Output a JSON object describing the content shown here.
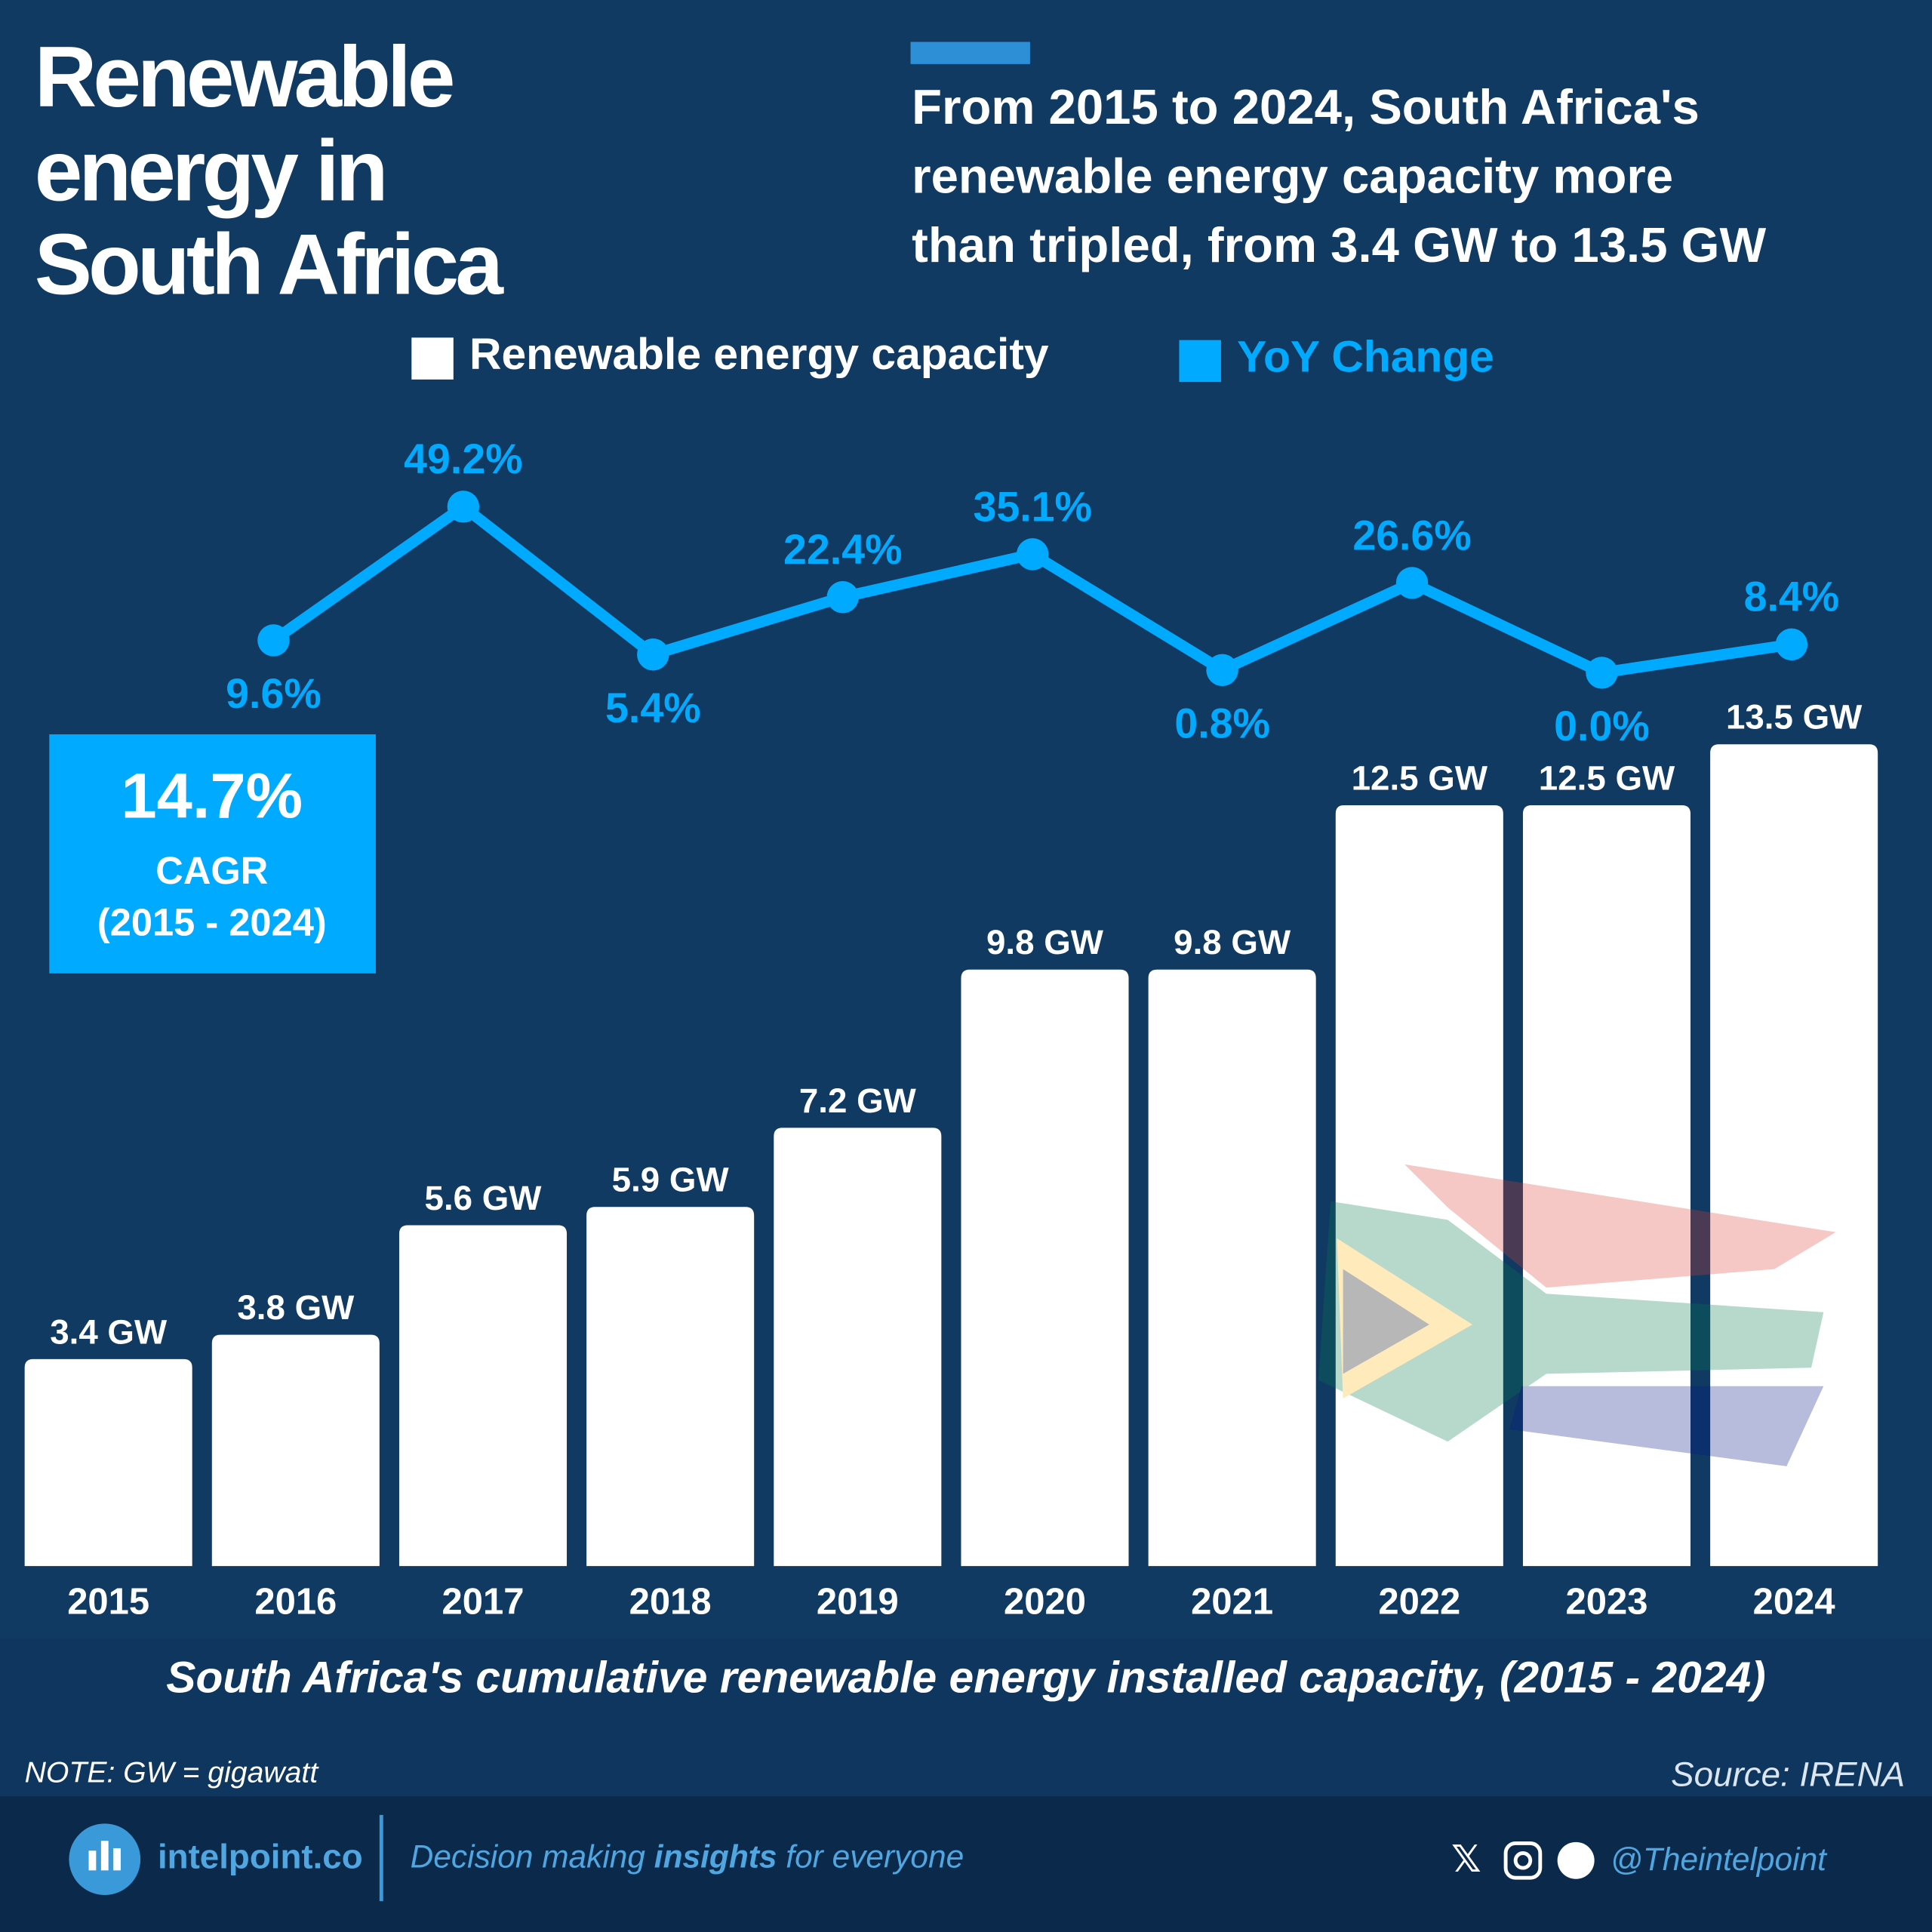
{
  "chart_data": {
    "type": "bar",
    "title": [
      "Renewable",
      "energy in",
      "South Africa"
    ],
    "subtitle": [
      "From 2015 to 2024, South Africa's",
      "renewable energy capacity more",
      "than tripled, from 3.4 GW to 13.5 GW"
    ],
    "categories": [
      "2015",
      "2016",
      "2017",
      "2018",
      "2019",
      "2020",
      "2021",
      "2022",
      "2023",
      "2024"
    ],
    "series": [
      {
        "name": "Renewable energy capacity",
        "type": "bar",
        "color": "#ffffff",
        "values": [
          3.4,
          3.8,
          5.6,
          5.9,
          7.2,
          9.8,
          9.8,
          12.5,
          12.5,
          13.5
        ],
        "value_labels": [
          "3.4 GW",
          "3.8 GW",
          "5.6 GW",
          "5.9 GW",
          "7.2 GW",
          "9.8 GW",
          "9.8 GW",
          "12.5 GW",
          "12.5 GW",
          "13.5 GW"
        ]
      },
      {
        "name": "YoY Change",
        "type": "line",
        "color": "#00aaff",
        "values": [
          null,
          9.6,
          49.2,
          5.4,
          22.4,
          35.1,
          0.8,
          26.6,
          0.0,
          8.4
        ],
        "value_labels": [
          null,
          "9.6%",
          "49.2%",
          "5.4%",
          "22.4%",
          "35.1%",
          "0.8%",
          "26.6%",
          "0.0%",
          "8.4%"
        ]
      }
    ],
    "annotation": {
      "value": "14.7%",
      "label": "CAGR",
      "period": "(2015 - 2024)"
    },
    "caption": "South Africa's cumulative renewable energy installed capacity, (2015 - 2024)",
    "note": "NOTE: GW = gigawatt",
    "source": "Source: IRENA"
  },
  "footer": {
    "brand": "intelpoint.co",
    "tagline": [
      "Decision making ",
      "insights",
      " for everyone"
    ],
    "handle": "@Theintelpoint"
  }
}
